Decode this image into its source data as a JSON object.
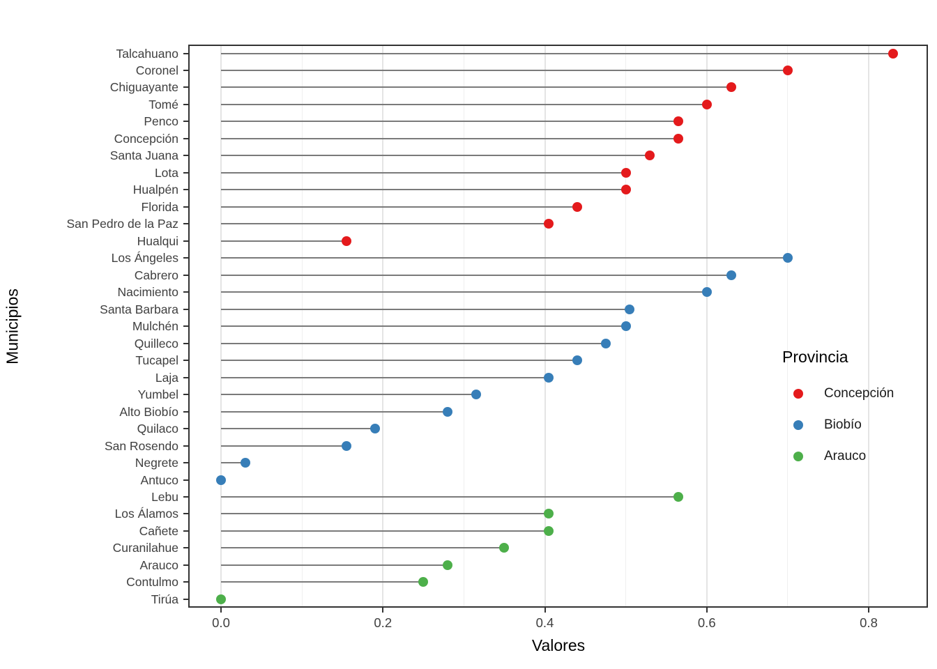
{
  "legend": {
    "title": "Provincia",
    "items": [
      {
        "label": "Concepción",
        "color": "#E41A1C"
      },
      {
        "label": "Biobío",
        "color": "#377EB8"
      },
      {
        "label": "Arauco",
        "color": "#4DAF4A"
      }
    ]
  },
  "chart_data": {
    "type": "lollipop",
    "orientation": "horizontal",
    "title": "",
    "xlabel": "Valores",
    "ylabel": "Municipios",
    "xlim": [
      -0.04,
      0.873
    ],
    "x_ticks": [
      0.0,
      0.2,
      0.4,
      0.6,
      0.8
    ],
    "x_tick_labels": [
      "0.0",
      "0.2",
      "0.4",
      "0.6",
      "0.8"
    ],
    "gridline_values": [
      0.0,
      0.1,
      0.2,
      0.3,
      0.4,
      0.5,
      0.6,
      0.7,
      0.8
    ],
    "grid": "vertical only, light gray, minor lines every 0.1",
    "legend_title": "Provincia",
    "legend_position": "inside plot, center-right",
    "series_colors": {
      "Concepción": "#E41A1C",
      "Biobío": "#377EB8",
      "Arauco": "#4DAF4A"
    },
    "stem_color": "#7a7a7a",
    "points": [
      {
        "municipio": "Talcahuano",
        "valor": 0.83,
        "provincia": "Concepción"
      },
      {
        "municipio": "Coronel",
        "valor": 0.7,
        "provincia": "Concepción"
      },
      {
        "municipio": "Chiguayante",
        "valor": 0.63,
        "provincia": "Concepción"
      },
      {
        "municipio": "Tomé",
        "valor": 0.6,
        "provincia": "Concepción"
      },
      {
        "municipio": "Penco",
        "valor": 0.565,
        "provincia": "Concepción"
      },
      {
        "municipio": "Concepción",
        "valor": 0.565,
        "provincia": "Concepción"
      },
      {
        "municipio": "Santa Juana",
        "valor": 0.53,
        "provincia": "Concepción"
      },
      {
        "municipio": "Lota",
        "valor": 0.5,
        "provincia": "Concepción"
      },
      {
        "municipio": "Hualpén",
        "valor": 0.5,
        "provincia": "Concepción"
      },
      {
        "municipio": "Florida",
        "valor": 0.44,
        "provincia": "Concepción"
      },
      {
        "municipio": "San Pedro de la Paz",
        "valor": 0.405,
        "provincia": "Concepción"
      },
      {
        "municipio": "Hualqui",
        "valor": 0.155,
        "provincia": "Concepción"
      },
      {
        "municipio": "Los Ángeles",
        "valor": 0.7,
        "provincia": "Biobío"
      },
      {
        "municipio": "Cabrero",
        "valor": 0.63,
        "provincia": "Biobío"
      },
      {
        "municipio": "Nacimiento",
        "valor": 0.6,
        "provincia": "Biobío"
      },
      {
        "municipio": "Santa Barbara",
        "valor": 0.505,
        "provincia": "Biobío"
      },
      {
        "municipio": "Mulchén",
        "valor": 0.5,
        "provincia": "Biobío"
      },
      {
        "municipio": "Quilleco",
        "valor": 0.475,
        "provincia": "Biobío"
      },
      {
        "municipio": "Tucapel",
        "valor": 0.44,
        "provincia": "Biobío"
      },
      {
        "municipio": "Laja",
        "valor": 0.405,
        "provincia": "Biobío"
      },
      {
        "municipio": "Yumbel",
        "valor": 0.315,
        "provincia": "Biobío"
      },
      {
        "municipio": "Alto Biobío",
        "valor": 0.28,
        "provincia": "Biobío"
      },
      {
        "municipio": "Quilaco",
        "valor": 0.19,
        "provincia": "Biobío"
      },
      {
        "municipio": "San Rosendo",
        "valor": 0.155,
        "provincia": "Biobío"
      },
      {
        "municipio": "Negrete",
        "valor": 0.03,
        "provincia": "Biobío"
      },
      {
        "municipio": "Antuco",
        "valor": 0.0,
        "provincia": "Biobío"
      },
      {
        "municipio": "Lebu",
        "valor": 0.565,
        "provincia": "Arauco"
      },
      {
        "municipio": "Los Álamos",
        "valor": 0.405,
        "provincia": "Arauco"
      },
      {
        "municipio": "Cañete",
        "valor": 0.405,
        "provincia": "Arauco"
      },
      {
        "municipio": "Curanilahue",
        "valor": 0.35,
        "provincia": "Arauco"
      },
      {
        "municipio": "Arauco",
        "valor": 0.28,
        "provincia": "Arauco"
      },
      {
        "municipio": "Contulmo",
        "valor": 0.25,
        "provincia": "Arauco"
      },
      {
        "municipio": "Tirúa",
        "valor": 0.0,
        "provincia": "Arauco"
      }
    ]
  }
}
